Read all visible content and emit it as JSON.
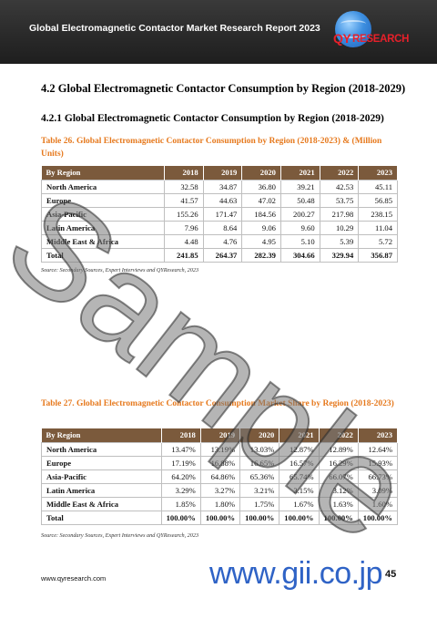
{
  "header": {
    "title": "Global Electromagnetic Contactor Market Research Report 2023",
    "logo_text": "RESEARCH",
    "logo_prefix": "QY"
  },
  "section": {
    "heading": "4.2  Global Electromagnetic Contactor Consumption by Region (2018-2029)",
    "subheading": "4.2.1  Global Electromagnetic Contactor Consumption by Region (2018-2029)"
  },
  "table1": {
    "caption": "Table 26.   Global Electromagnetic Contactor Consumption by Region (2018-2023) & (Million Units)",
    "columns": [
      "By Region",
      "2018",
      "2019",
      "2020",
      "2021",
      "2022",
      "2023"
    ],
    "rows": [
      [
        "North America",
        "32.58",
        "34.87",
        "36.80",
        "39.21",
        "42.53",
        "45.11"
      ],
      [
        "Europe",
        "41.57",
        "44.63",
        "47.02",
        "50.48",
        "53.75",
        "56.85"
      ],
      [
        "Asia-Pacific",
        "155.26",
        "171.47",
        "184.56",
        "200.27",
        "217.98",
        "238.15"
      ],
      [
        "Latin America",
        "7.96",
        "8.64",
        "9.06",
        "9.60",
        "10.29",
        "11.04"
      ],
      [
        "Middle East & Africa",
        "4.48",
        "4.76",
        "4.95",
        "5.10",
        "5.39",
        "5.72"
      ],
      [
        "Total",
        "241.85",
        "264.37",
        "282.39",
        "304.66",
        "329.94",
        "356.87"
      ]
    ],
    "source": "Source: Secondary Sources, Expert Interviews and QYResearch, 2023"
  },
  "table2": {
    "caption": "Table 27.   Global Electromagnetic Contactor Consumption Market Share by Region (2018-2023)",
    "columns": [
      "By Region",
      "2018",
      "2019",
      "2020",
      "2021",
      "2022",
      "2023"
    ],
    "rows": [
      [
        "North America",
        "13.47%",
        "13.19%",
        "13.03%",
        "12.87%",
        "12.89%",
        "12.64%"
      ],
      [
        "Europe",
        "17.19%",
        "16.88%",
        "16.65%",
        "16.57%",
        "16.29%",
        "15.93%"
      ],
      [
        "Asia-Pacific",
        "64.20%",
        "64.86%",
        "65.36%",
        "65.74%",
        "66.07%",
        "66.73%"
      ],
      [
        "Latin America",
        "3.29%",
        "3.27%",
        "3.21%",
        "3.15%",
        "3.12%",
        "3.09%"
      ],
      [
        "Middle East & Africa",
        "1.85%",
        "1.80%",
        "1.75%",
        "1.67%",
        "1.63%",
        "1.60%"
      ],
      [
        "Total",
        "100.00%",
        "100.00%",
        "100.00%",
        "100.00%",
        "100.00%",
        "100.00%"
      ]
    ],
    "source": "Source: Secondary Sources, Expert Interviews and QYResearch, 2023"
  },
  "footer": {
    "url": "www.qyresearch.com",
    "page_number": "45",
    "gii_mark": "www.gii.co.jp"
  },
  "watermark": "Sample",
  "colors": {
    "header_bg": "#2a2a2a",
    "table_header_bg": "#7b5a3c",
    "caption": "#e6791d",
    "logo_red": "#e8202a",
    "gii_blue": "#2f63c6"
  }
}
